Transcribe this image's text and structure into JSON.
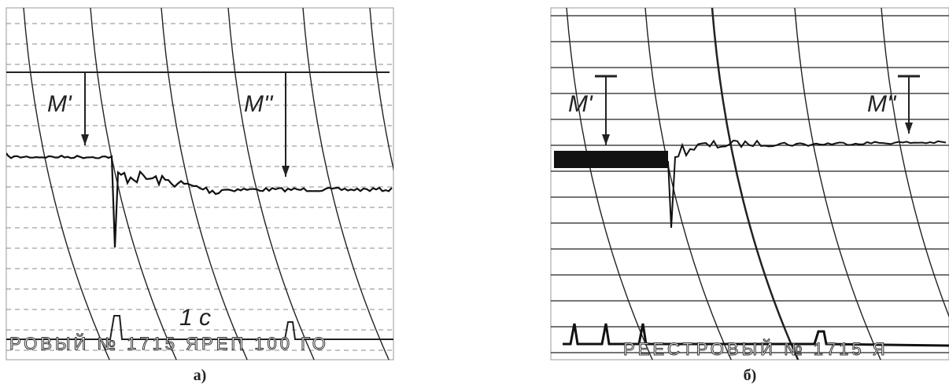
{
  "panels": [
    {
      "caption": "а)",
      "labels": [
        "M'",
        "M''",
        "1 c"
      ],
      "stamp": "РОВЫЙ № 1715 ЯРЕП 100 ГО"
    },
    {
      "caption": "б)",
      "labels": [
        "M'",
        "M''"
      ],
      "stamp": "РЕЕСТРОВЫЙ № 1715 Я"
    }
  ]
}
